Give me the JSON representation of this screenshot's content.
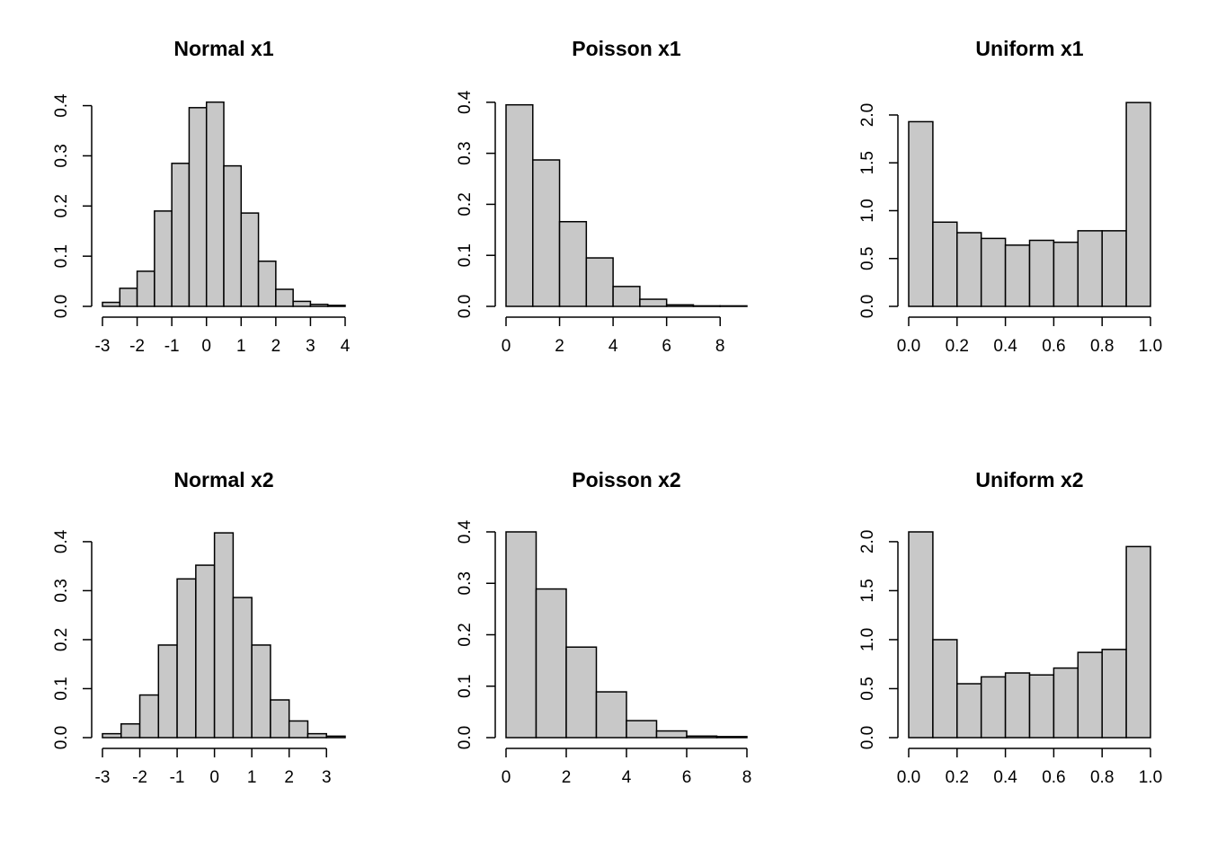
{
  "colors": {
    "bar_fill": "#c8c8c8",
    "bar_stroke": "#000000",
    "axis": "#000000",
    "background": "#ffffff"
  },
  "chart_data": [
    {
      "type": "bar",
      "title": "Normal x1",
      "xlabel": "",
      "ylabel": "",
      "bin_edges": [
        -3,
        -2.5,
        -2,
        -1.5,
        -1,
        -0.5,
        0,
        0.5,
        1,
        1.5,
        2,
        2.5,
        3,
        3.5,
        4
      ],
      "values": [
        0.008,
        0.036,
        0.07,
        0.19,
        0.285,
        0.396,
        0.407,
        0.28,
        0.186,
        0.09,
        0.034,
        0.01,
        0.004,
        0.002
      ],
      "xlim": [
        -3,
        4
      ],
      "ylim": [
        0,
        0.41
      ],
      "x_ticks": [
        -3,
        -2,
        -1,
        0,
        1,
        2,
        3,
        4
      ],
      "x_tick_labels": [
        "-3",
        "-2",
        "-1",
        "0",
        "1",
        "2",
        "3",
        "4"
      ],
      "y_ticks": [
        0,
        0.1,
        0.2,
        0.3,
        0.4
      ],
      "y_tick_labels": [
        "0.0",
        "0.1",
        "0.2",
        "0.3",
        "0.4"
      ],
      "grid": false
    },
    {
      "type": "bar",
      "title": "Poisson x1",
      "xlabel": "",
      "ylabel": "",
      "bin_edges": [
        0,
        1,
        2,
        3,
        4,
        5,
        6,
        7,
        8,
        9
      ],
      "values": [
        0.395,
        0.287,
        0.166,
        0.095,
        0.039,
        0.014,
        0.003,
        0.001,
        0.001
      ],
      "xlim": [
        0,
        9
      ],
      "ylim": [
        0,
        0.405
      ],
      "x_ticks": [
        0,
        2,
        4,
        6,
        8
      ],
      "x_tick_labels": [
        "0",
        "2",
        "4",
        "6",
        "8"
      ],
      "y_ticks": [
        0,
        0.1,
        0.2,
        0.3,
        0.4
      ],
      "y_tick_labels": [
        "0.0",
        "0.1",
        "0.2",
        "0.3",
        "0.4"
      ],
      "grid": false
    },
    {
      "type": "bar",
      "title": "Uniform x1",
      "xlabel": "",
      "ylabel": "",
      "bin_edges": [
        0,
        0.1,
        0.2,
        0.3,
        0.4,
        0.5,
        0.6,
        0.7,
        0.8,
        0.9,
        1.0
      ],
      "values": [
        1.93,
        0.88,
        0.77,
        0.71,
        0.64,
        0.69,
        0.67,
        0.79,
        0.79,
        2.13
      ],
      "xlim": [
        0,
        1
      ],
      "ylim": [
        0,
        2.15
      ],
      "x_ticks": [
        0,
        0.2,
        0.4,
        0.6,
        0.8,
        1.0
      ],
      "x_tick_labels": [
        "0.0",
        "0.2",
        "0.4",
        "0.6",
        "0.8",
        "1.0"
      ],
      "y_ticks": [
        0,
        0.5,
        1.0,
        1.5,
        2.0
      ],
      "y_tick_labels": [
        "0.0",
        "0.5",
        "1.0",
        "1.5",
        "2.0"
      ],
      "grid": false
    },
    {
      "type": "bar",
      "title": "Normal x2",
      "xlabel": "",
      "ylabel": "",
      "bin_edges": [
        -3,
        -2.5,
        -2,
        -1.5,
        -1,
        -0.5,
        0,
        0.5,
        1,
        1.5,
        2,
        2.5,
        3,
        3.5
      ],
      "values": [
        0.008,
        0.028,
        0.087,
        0.189,
        0.324,
        0.352,
        0.418,
        0.286,
        0.189,
        0.077,
        0.034,
        0.008,
        0.003
      ],
      "xlim": [
        -3,
        3.5
      ],
      "ylim": [
        0,
        0.42
      ],
      "x_ticks": [
        -3,
        -2,
        -1,
        0,
        1,
        2,
        3
      ],
      "x_tick_labels": [
        "-3",
        "-2",
        "-1",
        "0",
        "1",
        "2",
        "3"
      ],
      "y_ticks": [
        0,
        0.1,
        0.2,
        0.3,
        0.4
      ],
      "y_tick_labels": [
        "0.0",
        "0.1",
        "0.2",
        "0.3",
        "0.4"
      ],
      "grid": false
    },
    {
      "type": "bar",
      "title": "Poisson x2",
      "xlabel": "",
      "ylabel": "",
      "bin_edges": [
        0,
        1,
        2,
        3,
        4,
        5,
        6,
        7,
        8
      ],
      "values": [
        0.4,
        0.289,
        0.176,
        0.089,
        0.033,
        0.013,
        0.003,
        0.002
      ],
      "xlim": [
        0,
        8
      ],
      "ylim": [
        0,
        0.4
      ],
      "x_ticks": [
        0,
        2,
        4,
        6,
        8
      ],
      "x_tick_labels": [
        "0",
        "2",
        "4",
        "6",
        "8"
      ],
      "y_ticks": [
        0,
        0.1,
        0.2,
        0.3,
        0.4
      ],
      "y_tick_labels": [
        "0.0",
        "0.1",
        "0.2",
        "0.3",
        "0.4"
      ],
      "grid": false
    },
    {
      "type": "bar",
      "title": "Uniform x2",
      "xlabel": "",
      "ylabel": "",
      "bin_edges": [
        0,
        0.1,
        0.2,
        0.3,
        0.4,
        0.5,
        0.6,
        0.7,
        0.8,
        0.9,
        1.0
      ],
      "values": [
        2.1,
        1.0,
        0.55,
        0.62,
        0.66,
        0.64,
        0.71,
        0.87,
        0.9,
        1.95
      ],
      "xlim": [
        0,
        1
      ],
      "ylim": [
        0,
        2.1
      ],
      "x_ticks": [
        0,
        0.2,
        0.4,
        0.6,
        0.8,
        1.0
      ],
      "x_tick_labels": [
        "0.0",
        "0.2",
        "0.4",
        "0.6",
        "0.8",
        "1.0"
      ],
      "y_ticks": [
        0,
        0.5,
        1.0,
        1.5,
        2.0
      ],
      "y_tick_labels": [
        "0.0",
        "0.5",
        "1.0",
        "1.5",
        "2.0"
      ],
      "grid": false
    }
  ]
}
